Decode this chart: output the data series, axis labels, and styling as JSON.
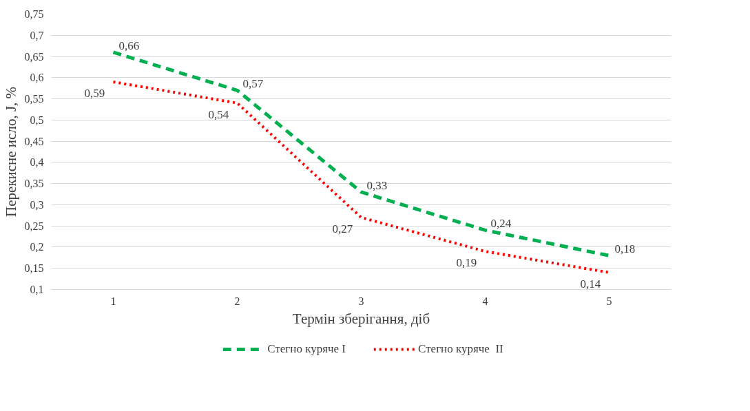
{
  "chart_data": {
    "type": "line",
    "xlabel": "Термін зберігання, діб",
    "ylabel": "Перекисне исло, J, %",
    "categories": [
      "1",
      "2",
      "3",
      "4",
      "5"
    ],
    "ylim": [
      0.1,
      0.75
    ],
    "yticks": [
      {
        "value": 0.1,
        "label": "0,1"
      },
      {
        "value": 0.15,
        "label": "0,15"
      },
      {
        "value": 0.2,
        "label": "0,2"
      },
      {
        "value": 0.25,
        "label": "0,25"
      },
      {
        "value": 0.3,
        "label": "0,3"
      },
      {
        "value": 0.35,
        "label": "0,35"
      },
      {
        "value": 0.4,
        "label": "0,4"
      },
      {
        "value": 0.45,
        "label": "0,45"
      },
      {
        "value": 0.5,
        "label": "0,5"
      },
      {
        "value": 0.55,
        "label": "0,55"
      },
      {
        "value": 0.6,
        "label": "0,6"
      },
      {
        "value": 0.65,
        "label": "0,65"
      },
      {
        "value": 0.7,
        "label": "0,7"
      },
      {
        "value": 0.75,
        "label": "0,75"
      }
    ],
    "grid": "y",
    "legend": "bottom",
    "marker": "none",
    "series": [
      {
        "name": "Стегно куряче I",
        "color": "#00b050",
        "line_style": "dashed",
        "values": [
          0.66,
          0.57,
          0.33,
          0.24,
          0.18
        ],
        "value_labels": [
          "0,66",
          "0,57",
          "0,33",
          "0,24",
          "0,18"
        ]
      },
      {
        "name": "Стегно куряче  II",
        "color": "#ff0000",
        "line_style": "dotted",
        "values": [
          0.59,
          0.54,
          0.27,
          0.19,
          0.14
        ],
        "value_labels": [
          "0,59",
          "0,54",
          "0,27",
          "0,19",
          "0,14"
        ]
      }
    ]
  }
}
